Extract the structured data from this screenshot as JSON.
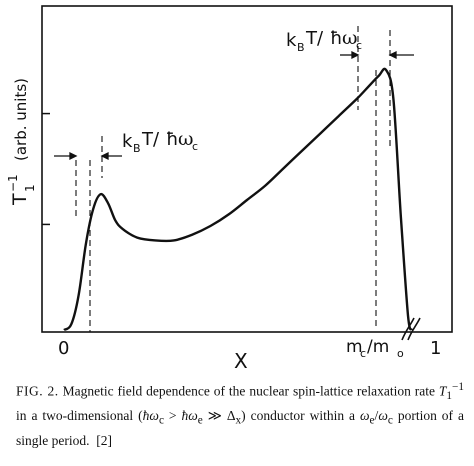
{
  "chart_data": {
    "type": "line",
    "xlabel": "X",
    "ylabel": "T",
    "ylabel_sup": "−1",
    "ylabel_sub": "1",
    "ylabel_unit": "(arb. units)",
    "x_ticks": [
      {
        "x": 0,
        "label": "0"
      },
      {
        "x": 0.9,
        "label": "m",
        "label_sub": "c",
        "label_mid": "/m",
        "label_sub2": "o"
      },
      {
        "x": 1,
        "label": "1"
      }
    ],
    "xlim": [
      -0.05,
      1.05
    ],
    "ylim": [
      0,
      1
    ],
    "y_ticks": [
      0.33,
      0.67
    ],
    "series": [
      {
        "x": [
          0.0,
          0.02,
          0.04,
          0.06,
          0.08,
          0.1,
          0.12,
          0.14,
          0.16,
          0.2,
          0.25,
          0.3,
          0.35,
          0.4,
          0.45,
          0.5,
          0.55,
          0.6,
          0.65,
          0.7,
          0.75,
          0.8,
          0.83,
          0.86,
          0.88,
          0.9,
          0.92,
          0.94,
          0.95
        ],
        "y": [
          0.0,
          0.02,
          0.12,
          0.3,
          0.42,
          0.47,
          0.44,
          0.38,
          0.35,
          0.32,
          0.31,
          0.31,
          0.33,
          0.36,
          0.4,
          0.45,
          0.5,
          0.56,
          0.62,
          0.68,
          0.74,
          0.8,
          0.84,
          0.88,
          0.9,
          0.8,
          0.4,
          0.05,
          0.0
        ]
      }
    ],
    "annotations": {
      "left": {
        "k": "k",
        "k_sub": "B",
        "rest": "T/",
        "hbar": "ħ",
        "omega": "ω",
        "omega_sub": "c"
      },
      "right": {
        "k": "k",
        "k_sub": "B",
        "rest": "T/",
        "hbar": "ħ",
        "omega": "ω",
        "omega_sub": "c"
      }
    },
    "grid": false,
    "legend": "none"
  },
  "caption": {
    "label": "FIG. 2.",
    "text1": "Magnetic field dependence of the nuclear spin-lattice relaxation rate",
    "T": "T",
    "T_sub": "1",
    "T_sup": "−1",
    "text2": "in a two-dimensional",
    "cond1_open": "(",
    "cond1_a": "ħω",
    "cond1_a_sub": "c",
    "cond1_gt": " > ",
    "cond1_b": "ħω",
    "cond1_b_sub": "e",
    "cond2": "≫ Δ",
    "cond2_sub": "x",
    "cond2_close": ")",
    "text3": "conductor within a",
    "ratio_a": "ω",
    "ratio_a_sub": "e",
    "ratio_slash": "/",
    "ratio_b": "ω",
    "ratio_b_sub": "c",
    "text4": "portion of a single period.",
    "ref": "[2]"
  }
}
